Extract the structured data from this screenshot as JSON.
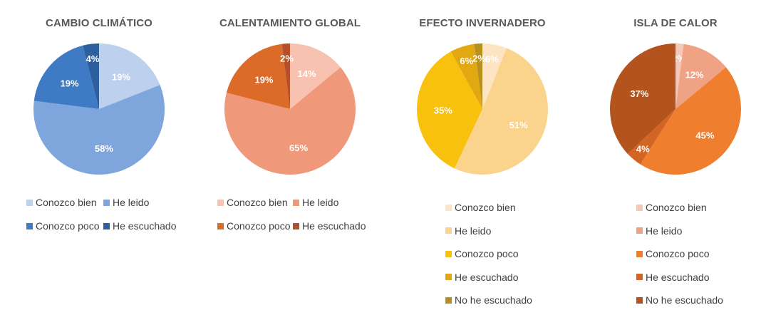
{
  "chart_data": [
    {
      "type": "pie",
      "title": "CAMBIO CLIMÁTICO",
      "categories": [
        "Conozco bien",
        "He leido",
        "Conozco poco",
        "He escuchado"
      ],
      "values": [
        19,
        58,
        19,
        4
      ],
      "labels": [
        "19%",
        "58%",
        "19%",
        "4%"
      ],
      "colors": [
        "#bdd1ee",
        "#7fa6dc",
        "#3f7bc4",
        "#2d5f9e"
      ],
      "legend_position": "bottom"
    },
    {
      "type": "pie",
      "title": "CALENTAMIENTO GLOBAL",
      "categories": [
        "Conozco bien",
        "He leido",
        "Conozco poco",
        "He escuchado"
      ],
      "values": [
        14,
        65,
        19,
        2
      ],
      "labels": [
        "14%",
        "65%",
        "19%",
        "2%"
      ],
      "colors": [
        "#f7c2b0",
        "#f0997a",
        "#dc6b2a",
        "#b5502a"
      ],
      "legend_position": "bottom"
    },
    {
      "type": "pie",
      "title": "EFECTO INVERNADERO",
      "categories": [
        "Conozco bien",
        "He leido",
        "Conozco poco",
        "He escuchado",
        "No he escuchado"
      ],
      "values": [
        6,
        51,
        35,
        6,
        2
      ],
      "labels": [
        "6%",
        "51%",
        "35%",
        "6%",
        "2%"
      ],
      "colors": [
        "#fde5c4",
        "#fad48c",
        "#f8c10e",
        "#e1a812",
        "#b8901c"
      ],
      "legend_position": "bottom"
    },
    {
      "type": "pie",
      "title": "ISLA DE CALOR",
      "categories": [
        "Conozco bien",
        "He leido",
        "Conozco poco",
        "He escuchado",
        "No he escuchado"
      ],
      "values": [
        2,
        12,
        45,
        4,
        37
      ],
      "labels": [
        "2%",
        "12%",
        "45%",
        "4%",
        "37%"
      ],
      "colors": [
        "#f6c7b7",
        "#f0a285",
        "#ef7e2f",
        "#d36524",
        "#b3541f"
      ],
      "legend_position": "bottom"
    }
  ]
}
